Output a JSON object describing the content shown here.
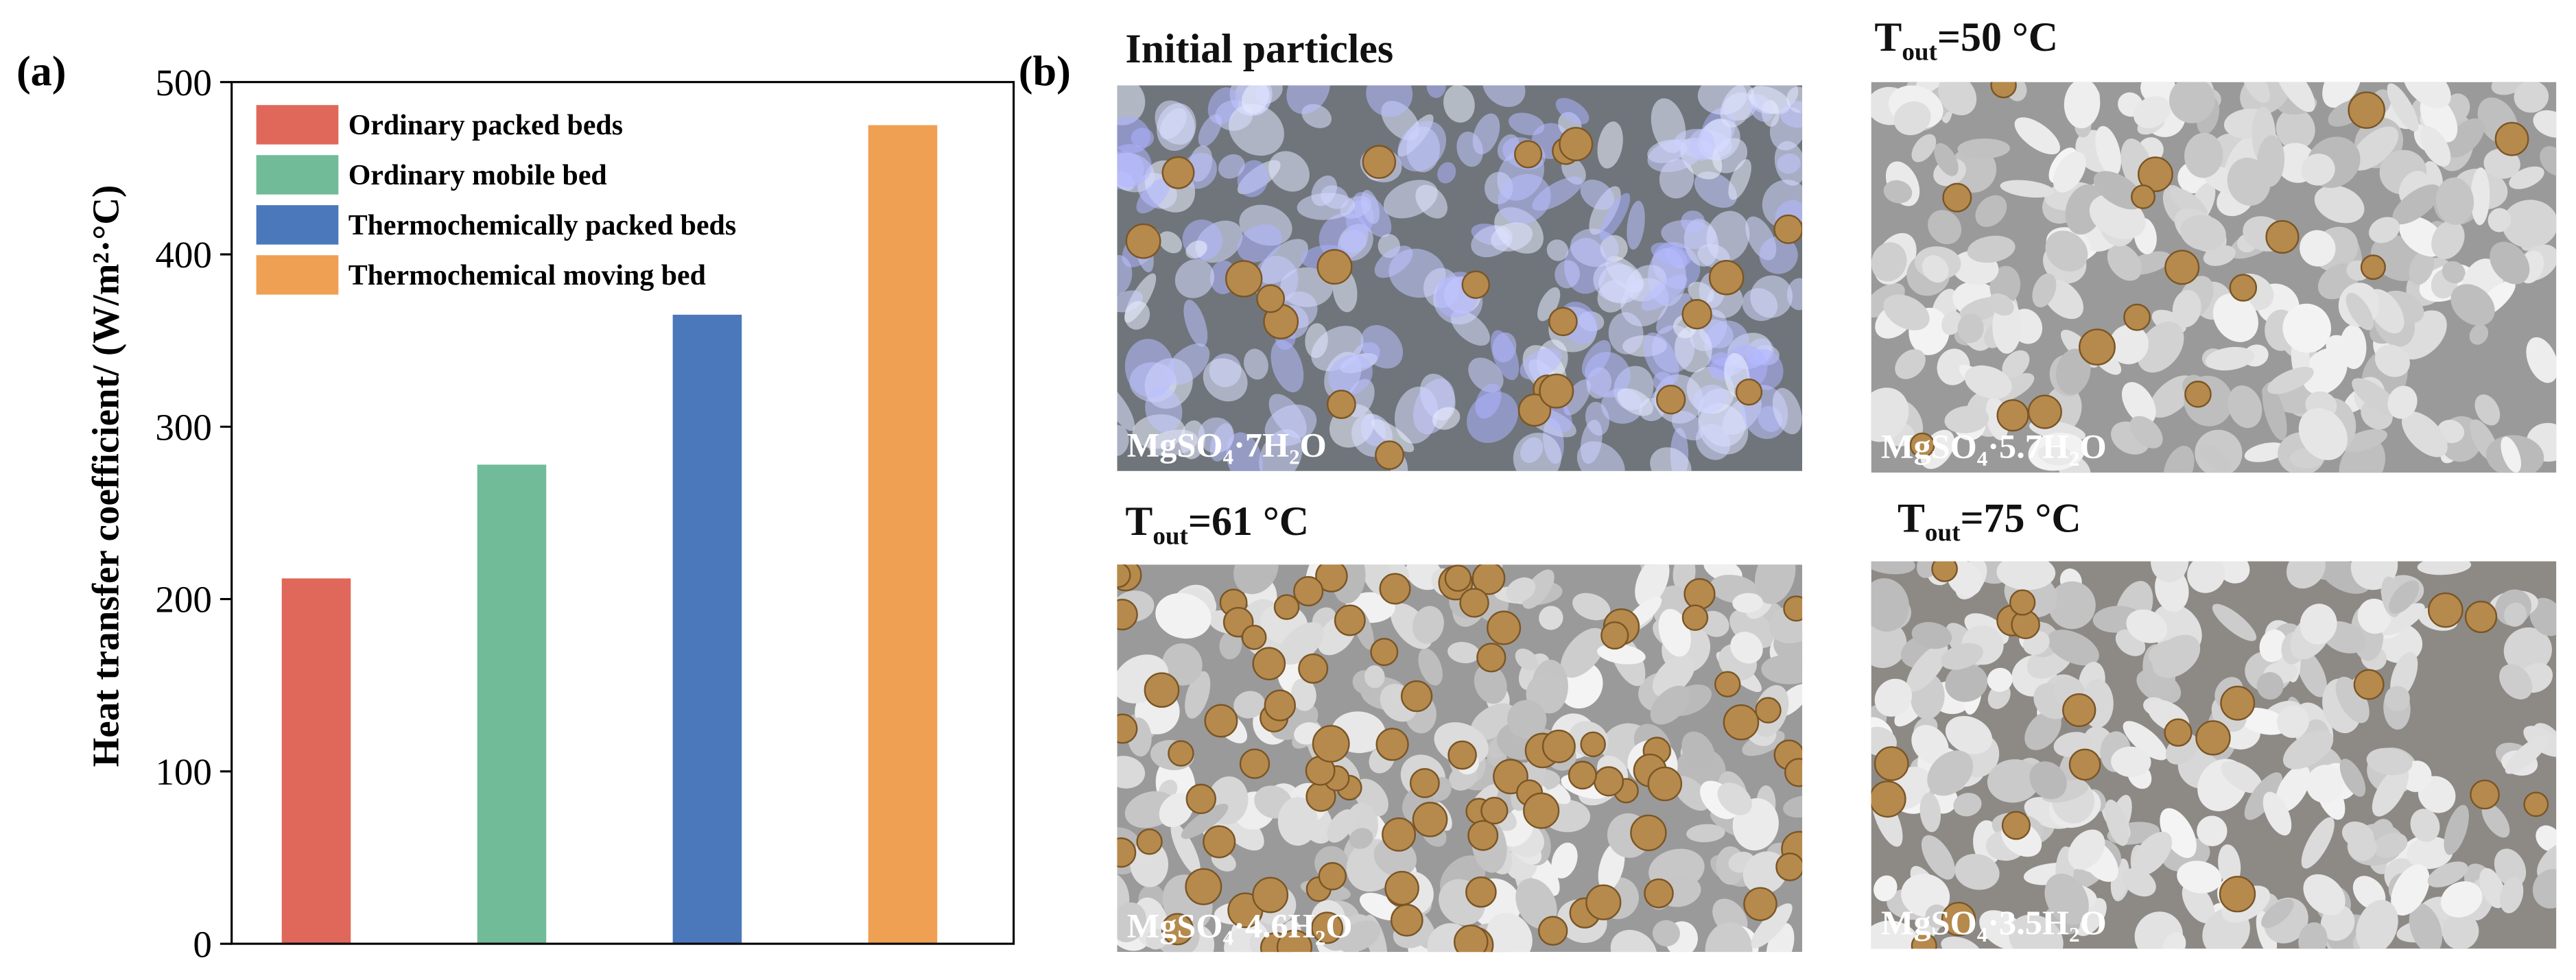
{
  "chart_data": {
    "type": "bar",
    "panel_label": "(a)",
    "ylabel": "Heat transfer coefficient/ (W/m²·°C)",
    "categories": [
      "Ordinary packed beds",
      "Ordinary mobile bed",
      "Thermochemically packed beds",
      "Thermochemical moving bed"
    ],
    "values": [
      212,
      278,
      365,
      475
    ],
    "colors": [
      "#e0685b",
      "#72bb98",
      "#4a78bb",
      "#efa052"
    ],
    "ylim": [
      0,
      500
    ],
    "yticks": [
      0,
      100,
      200,
      300,
      400,
      500
    ],
    "legend": "upper left"
  },
  "photo_panel": {
    "panel_label": "(b)",
    "photos": [
      {
        "title": [
          {
            "t": "Initial particles"
          }
        ],
        "caption": [
          {
            "t": "MgSO"
          },
          {
            "sub": "4"
          },
          {
            "t": "·7H"
          },
          {
            "sub": "2"
          },
          {
            "t": "O"
          }
        ]
      },
      {
        "title": [
          {
            "t": "T"
          },
          {
            "sub": "out"
          },
          {
            "t": "=50 °C"
          }
        ],
        "caption": [
          {
            "t": "MgSO"
          },
          {
            "sub": "4"
          },
          {
            "t": "·5.7H"
          },
          {
            "sub": "2"
          },
          {
            "t": "O"
          }
        ]
      },
      {
        "title": [
          {
            "t": "T"
          },
          {
            "sub": "out"
          },
          {
            "t": "=61 °C"
          }
        ],
        "caption": [
          {
            "t": "MgSO"
          },
          {
            "sub": "4"
          },
          {
            "t": "·4.6H"
          },
          {
            "sub": "2"
          },
          {
            "t": "O"
          }
        ]
      },
      {
        "title": [
          {
            "t": "T"
          },
          {
            "sub": "out"
          },
          {
            "t": "=75 °C"
          }
        ],
        "caption": [
          {
            "t": "MgSO"
          },
          {
            "sub": "4"
          },
          {
            "t": "·3.5H"
          },
          {
            "sub": "2"
          },
          {
            "t": "O"
          }
        ]
      }
    ]
  }
}
